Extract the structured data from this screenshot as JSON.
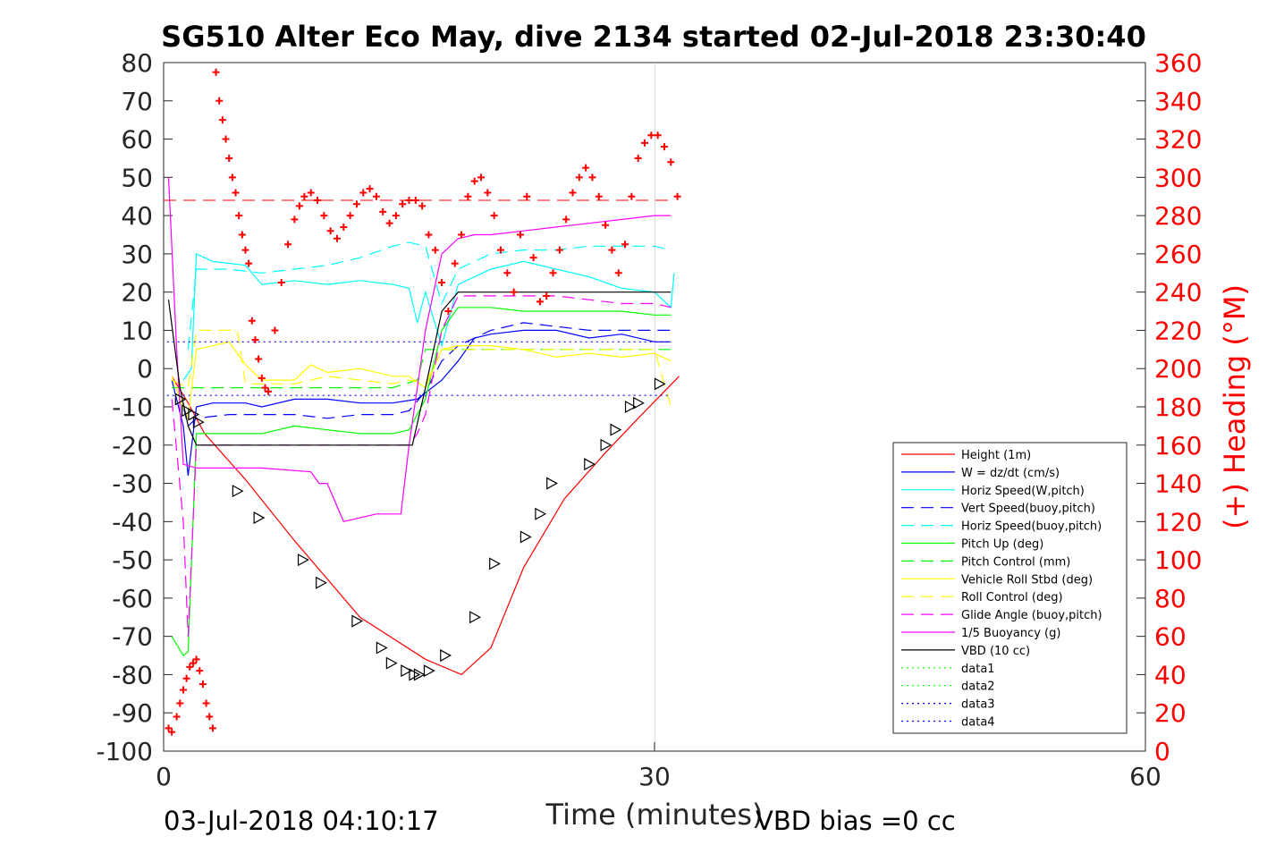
{
  "chart_data": {
    "type": "line",
    "title": "SG510 Alter Eco May, dive 2134 started 02-Jul-2018 23:30:40",
    "xlabel": "Time (minutes)",
    "ylabel": "",
    "y2label": "(+) Heading (°M)",
    "xlim": [
      0,
      60
    ],
    "ylim": [
      -100,
      80
    ],
    "y2lim": [
      0,
      360
    ],
    "x_ticks": [
      "0",
      "30",
      "60"
    ],
    "y_ticks": [
      "-100",
      "-90",
      "-80",
      "-70",
      "-60",
      "-50",
      "-40",
      "-30",
      "-20",
      "-10",
      "0",
      "10",
      "20",
      "30",
      "40",
      "50",
      "60",
      "70",
      "80"
    ],
    "y2_ticks": [
      "0",
      "20",
      "40",
      "60",
      "80",
      "100",
      "120",
      "140",
      "160",
      "180",
      "200",
      "220",
      "240",
      "260",
      "280",
      "300",
      "320",
      "340",
      "360"
    ],
    "grid": "x only at 30",
    "legend_position": "lower-right",
    "footer_left": "03-Jul-2018 04:10:17",
    "footer_right": "VBD bias =0 cc",
    "colors": {
      "right_axis": "#ff0000",
      "left_axis": "#262626",
      "title": "#000000"
    },
    "series": [
      {
        "name": "Height (1m)",
        "color": "#ff0000",
        "style": "solid",
        "x": [
          0.5,
          1.5,
          2.5,
          5,
          8,
          12,
          16,
          18.2,
          20,
          22,
          24.5,
          27,
          29,
          31.5
        ],
        "y": [
          -2,
          -9,
          -17,
          -29,
          -45,
          -65,
          -76,
          -80,
          -73,
          -52,
          -34,
          -22,
          -13,
          -2
        ]
      },
      {
        "name": "W = dz/dt (cm/s)",
        "color": "#0000ff",
        "style": "solid",
        "x": [
          0.5,
          1.2,
          1.5,
          2,
          3,
          5,
          6,
          8,
          10,
          12,
          14,
          15.5,
          17,
          18,
          19,
          20,
          22,
          24,
          26,
          28,
          30,
          31
        ],
        "y": [
          -3,
          -15,
          -28,
          -10,
          -9,
          -9,
          -10,
          -8,
          -8,
          -9,
          -9,
          -8,
          -3,
          2,
          8,
          9,
          10,
          10,
          8,
          9,
          7,
          7
        ]
      },
      {
        "name": "Horiz Speed(W,pitch)",
        "color": "#00ffff",
        "style": "solid",
        "x": [
          1.2,
          1.7,
          2,
          3,
          5,
          6,
          8,
          10,
          12,
          14,
          15,
          15.5,
          16,
          17,
          18,
          19,
          20,
          22,
          24,
          26,
          28,
          30,
          31,
          31.2
        ],
        "y": [
          -3,
          0,
          30,
          28,
          27,
          22,
          23,
          22,
          23,
          22,
          21,
          12,
          20,
          6,
          22,
          24,
          26,
          28,
          26,
          24,
          21,
          20,
          16,
          25
        ]
      },
      {
        "name": "Vert Speed(buoy,pitch)",
        "color": "#0000ff",
        "style": "dashed",
        "x": [
          1.2,
          1.5,
          2,
          4,
          6,
          8,
          10,
          12,
          14,
          15,
          16,
          17,
          18,
          20,
          22,
          24,
          26,
          28,
          30,
          31
        ],
        "y": [
          -10,
          -15,
          -13,
          -12,
          -12,
          -12,
          -13,
          -12,
          -12,
          -11,
          -6,
          2,
          6,
          10,
          12,
          11,
          10,
          10,
          10,
          10
        ]
      },
      {
        "name": "Horiz Speed(buoy,pitch)",
        "color": "#00ffff",
        "style": "dashed",
        "x": [
          1.5,
          2,
          4,
          6,
          8,
          10,
          12,
          14,
          15,
          16,
          17,
          18,
          19,
          20,
          22,
          24,
          26,
          28,
          30,
          31
        ],
        "y": [
          5,
          26,
          26,
          25,
          26,
          27,
          29,
          32,
          33,
          32,
          17,
          26,
          28,
          30,
          31,
          31,
          32,
          32,
          32,
          31
        ]
      },
      {
        "name": "Pitch Up (deg)",
        "color": "#00ff00",
        "style": "solid",
        "x": [
          0.5,
          1.2,
          1.5,
          2,
          4,
          6,
          8,
          10,
          12,
          14,
          15,
          16,
          17,
          18,
          20,
          22,
          24,
          26,
          28,
          30,
          31
        ],
        "y": [
          -70,
          -75,
          -74,
          -17,
          -17,
          -17,
          -15,
          -16,
          -17,
          -17,
          -16,
          -8,
          10,
          16,
          16,
          15,
          15,
          15,
          15,
          14,
          14
        ]
      },
      {
        "name": "Pitch Control (mm)",
        "color": "#00ff00",
        "style": "dashed",
        "x": [
          0.5,
          3,
          8,
          14,
          15.5,
          16,
          31
        ],
        "y": [
          -5,
          -5,
          -5,
          -5,
          -3,
          5,
          5
        ]
      },
      {
        "name": "Vehicle Roll Stbd (deg)",
        "color": "#ffff00",
        "style": "solid",
        "x": [
          0.5,
          1.2,
          1.5,
          2,
          4,
          5,
          6,
          8,
          9,
          10,
          12,
          14,
          15,
          16,
          17,
          18,
          20,
          22,
          24,
          26,
          28,
          30,
          31
        ],
        "y": [
          -2,
          -10,
          -13,
          5,
          7,
          1,
          -3,
          -3,
          1,
          -1,
          0,
          -2,
          -2,
          -5,
          5,
          6,
          6,
          5,
          3,
          4,
          3,
          4,
          2
        ]
      },
      {
        "name": "Roll Control (deg)",
        "color": "#ffff00",
        "style": "dashed",
        "x": [
          0.5,
          1.5,
          2,
          4.5,
          5,
          8,
          10,
          14,
          15,
          16,
          17,
          18,
          20,
          24,
          28,
          30,
          31
        ],
        "y": [
          -3,
          -5,
          10,
          10,
          -4,
          -4,
          -2,
          -4,
          -3,
          -4,
          5,
          5,
          5,
          5,
          5,
          5,
          -10
        ]
      },
      {
        "name": "Glide Angle (buoy,pitch)",
        "color": "#ff00ff",
        "style": "dashed",
        "x": [
          0.5,
          1.2,
          1.5,
          2,
          4,
          8,
          12,
          15,
          15.5,
          16,
          17,
          18,
          20,
          24,
          26,
          28,
          30,
          31
        ],
        "y": [
          -8,
          -40,
          -70,
          -20,
          -20,
          -20,
          -20,
          -20,
          -17,
          -12,
          10,
          19,
          19,
          19,
          18,
          17,
          17,
          16
        ]
      },
      {
        "name": "1/5 Buoyancy (g)",
        "color": "#ff00ff",
        "style": "solid",
        "x": [
          0.3,
          0.8,
          1.2,
          2,
          3,
          6,
          9,
          9.5,
          10,
          10.5,
          11,
          12,
          13,
          14,
          14.5,
          15,
          15.5,
          16,
          17,
          18,
          19,
          20,
          22,
          24,
          26,
          28,
          30,
          31
        ],
        "y": [
          50,
          5,
          -25,
          -26,
          -26,
          -26,
          -27,
          -30,
          -30,
          -35,
          -40,
          -39,
          -38,
          -38,
          -38,
          -20,
          -5,
          10,
          30,
          34,
          35,
          35,
          36,
          37,
          38,
          39,
          40,
          40
        ]
      },
      {
        "name": "VBD (10 cc)",
        "color": "#000000",
        "style": "solid",
        "x": [
          0.3,
          1,
          1.5,
          2,
          4,
          8,
          12,
          14,
          15.2,
          16,
          16.5,
          17,
          18,
          20,
          24,
          28,
          31
        ],
        "y": [
          18,
          -5,
          -15,
          -20,
          -20,
          -20,
          -20,
          -20,
          -20,
          -5,
          5,
          15,
          20,
          20,
          20,
          20,
          20
        ]
      },
      {
        "name": "data1",
        "color": "#00ff00",
        "style": "dotted",
        "x": [],
        "y": []
      },
      {
        "name": "data2",
        "color": "#00ff00",
        "style": "dotted",
        "x": [],
        "y": []
      },
      {
        "name": "data3",
        "color": "#0000ff",
        "style": "dotted",
        "x": [
          0.2,
          31
        ],
        "y": [
          7,
          7
        ]
      },
      {
        "name": "data4",
        "color": "#0000ff",
        "style": "dotted",
        "x": [
          0.2,
          31
        ],
        "y": [
          -7,
          -7
        ]
      }
    ],
    "reference_line": {
      "color": "#ff0000",
      "style": "dashed",
      "y": 44,
      "x": [
        0,
        31
      ]
    },
    "heading_points": {
      "color": "#ff0000",
      "axis": "right",
      "x": [
        0.3,
        0.5,
        0.8,
        1.0,
        1.2,
        1.4,
        1.6,
        1.8,
        2.0,
        2.2,
        2.4,
        2.6,
        2.8,
        3.0,
        3.2,
        3.4,
        3.6,
        3.8,
        4.0,
        4.2,
        4.4,
        4.6,
        4.8,
        5.0,
        5.2,
        5.4,
        5.6,
        5.8,
        6.0,
        6.2,
        6.4,
        6.8,
        7.2,
        7.6,
        8.0,
        8.3,
        8.6,
        9.0,
        9.4,
        9.8,
        10.2,
        10.6,
        11.0,
        11.4,
        11.8,
        12.2,
        12.6,
        13.0,
        13.4,
        13.8,
        14.2,
        14.6,
        15.0,
        15.4,
        15.8,
        16.2,
        16.6,
        17.0,
        17.4,
        17.8,
        18.2,
        18.6,
        19.0,
        19.4,
        19.8,
        20.2,
        20.6,
        21.0,
        21.4,
        21.8,
        22.2,
        22.6,
        23.0,
        23.4,
        23.8,
        24.2,
        24.6,
        25.0,
        25.4,
        25.8,
        26.2,
        26.6,
        27.0,
        27.4,
        27.8,
        28.2,
        28.6,
        29.0,
        29.4,
        29.8,
        30.2,
        30.6,
        31.0,
        31.4
      ],
      "y": [
        12,
        10,
        18,
        25,
        32,
        38,
        44,
        46,
        48,
        42,
        35,
        25,
        18,
        12,
        355,
        340,
        330,
        320,
        310,
        300,
        292,
        280,
        270,
        262,
        255,
        225,
        215,
        205,
        195,
        190,
        188,
        220,
        245,
        265,
        278,
        285,
        290,
        292,
        288,
        280,
        272,
        268,
        274,
        280,
        286,
        292,
        294,
        290,
        282,
        276,
        280,
        286,
        288,
        288,
        285,
        270,
        262,
        245,
        230,
        255,
        270,
        290,
        298,
        300,
        292,
        280,
        262,
        250,
        240,
        270,
        290,
        258,
        235,
        238,
        250,
        262,
        278,
        292,
        300,
        305,
        300,
        290,
        275,
        262,
        250,
        265,
        290,
        310,
        318,
        322,
        322,
        316,
        308,
        290
      ]
    },
    "markers": {
      "color": "#000000",
      "shape": "triangle",
      "x": [
        1.0,
        1.4,
        1.8,
        2.1,
        4.5,
        5.8,
        8.5,
        9.6,
        11.8,
        13.3,
        13.9,
        14.8,
        15.3,
        15.6,
        16.2,
        17.2,
        19.0,
        20.2,
        22.1,
        23.0,
        23.7,
        26.0,
        27.0,
        27.6,
        28.5,
        29.0,
        30.3
      ],
      "y": [
        -8,
        -11,
        -12,
        -14,
        -32,
        -39,
        -50,
        -56,
        -66,
        -73,
        -77,
        -79,
        -80,
        -80,
        -79,
        -75,
        -65,
        -51,
        -44,
        -38,
        -30,
        -25,
        -20,
        -16,
        -10,
        -9,
        -4
      ]
    }
  }
}
